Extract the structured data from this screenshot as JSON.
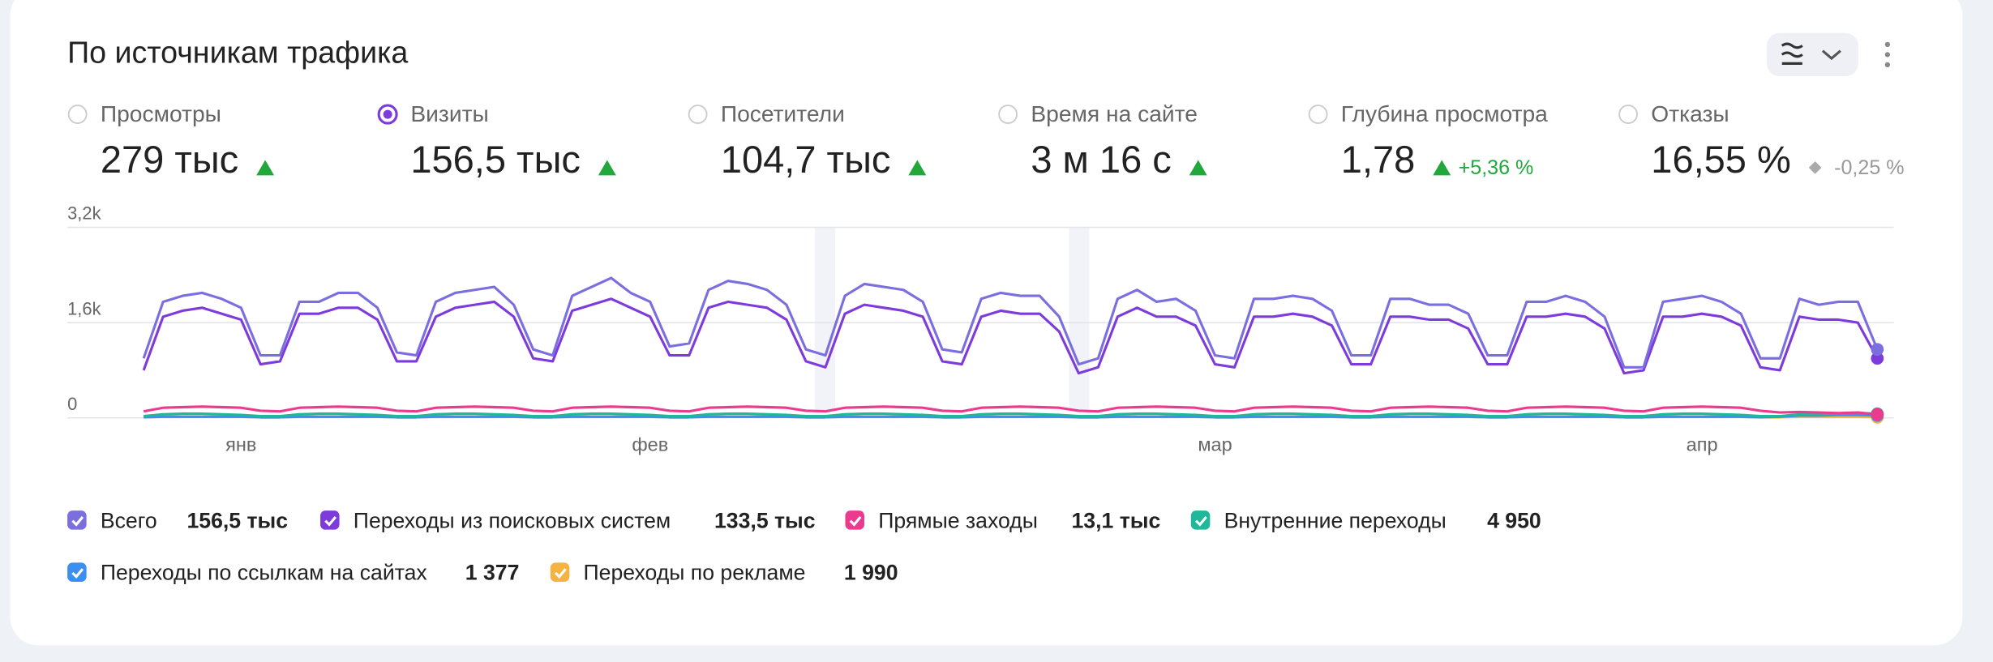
{
  "header": {
    "title": "По источникам трафика"
  },
  "metrics": [
    {
      "label": "Просмотры",
      "value": "279 тыс",
      "trend": "up"
    },
    {
      "label": "Визиты",
      "value": "156,5 тыс",
      "trend": "up",
      "selected": true
    },
    {
      "label": "Посетители",
      "value": "104,7 тыс",
      "trend": "up"
    },
    {
      "label": "Время на сайте",
      "value": "3 м 16 с",
      "trend": "up"
    },
    {
      "label": "Глубина просмотра",
      "value": "1,78",
      "trend": "up",
      "change": "+5,36 %"
    },
    {
      "label": "Отказы",
      "value": "16,55 %",
      "trend": "flat",
      "change": "-0,25 %"
    }
  ],
  "chart_data": {
    "type": "line",
    "categories": [
      null,
      null,
      null,
      null,
      null,
      "янв",
      null,
      null,
      null,
      null,
      null,
      null,
      null,
      null,
      null,
      null,
      null,
      null,
      null,
      null,
      null,
      null,
      null,
      null,
      null,
      null,
      "фев",
      null,
      null,
      null,
      null,
      null,
      null,
      null,
      null,
      null,
      null,
      null,
      null,
      null,
      null,
      null,
      null,
      null,
      null,
      null,
      null,
      null,
      null,
      null,
      null,
      null,
      null,
      null,
      null,
      "мар",
      null,
      null,
      null,
      null,
      null,
      null,
      null,
      null,
      null,
      null,
      null,
      null,
      null,
      null,
      null,
      null,
      null,
      null,
      null,
      null,
      null,
      null,
      null,
      null,
      "апр",
      null,
      null,
      null,
      null,
      null,
      null,
      null,
      null,
      null
    ],
    "ylim": [
      0,
      3200
    ],
    "yticks": [
      0,
      {
        "value": 1600,
        "label": "1,6k"
      },
      {
        "value": 3200,
        "label": "3,2k"
      }
    ],
    "grid": true,
    "series": [
      {
        "name": "Всего",
        "total": "156,5 тыс",
        "color": "#7b6fe0",
        "values": [
          1000,
          1950,
          2050,
          2100,
          2000,
          1850,
          1050,
          1050,
          1950,
          1950,
          2100,
          2100,
          1850,
          1100,
          1050,
          1950,
          2100,
          2150,
          2200,
          1900,
          1150,
          1050,
          2050,
          2200,
          2350,
          2100,
          1950,
          1200,
          1250,
          2150,
          2300,
          2250,
          2150,
          1900,
          1150,
          1050,
          2050,
          2250,
          2200,
          2150,
          1950,
          1150,
          1100,
          2000,
          2100,
          2050,
          2050,
          1700,
          900,
          1000,
          2000,
          2150,
          1950,
          2000,
          1800,
          1050,
          1000,
          2000,
          2000,
          2050,
          2000,
          1800,
          1050,
          1050,
          2000,
          2000,
          1900,
          1900,
          1750,
          1050,
          1050,
          1950,
          1950,
          2050,
          1950,
          1700,
          850,
          850,
          1950,
          2000,
          2050,
          1950,
          1750,
          1000,
          1000,
          2000,
          1900,
          1950,
          1950,
          1150
        ]
      },
      {
        "name": "Переходы из поисковых систем",
        "total": "133,5 тыс",
        "color": "#7e3bdc",
        "values": [
          800,
          1700,
          1800,
          1850,
          1750,
          1650,
          900,
          950,
          1750,
          1750,
          1850,
          1850,
          1650,
          950,
          950,
          1700,
          1850,
          1900,
          1950,
          1700,
          1000,
          950,
          1800,
          1900,
          2000,
          1850,
          1700,
          1050,
          1050,
          1850,
          1950,
          1900,
          1850,
          1650,
          950,
          850,
          1750,
          1900,
          1850,
          1800,
          1700,
          950,
          900,
          1700,
          1800,
          1750,
          1750,
          1450,
          750,
          850,
          1700,
          1850,
          1700,
          1700,
          1550,
          900,
          850,
          1700,
          1700,
          1750,
          1700,
          1550,
          900,
          900,
          1700,
          1700,
          1650,
          1650,
          1500,
          900,
          900,
          1700,
          1700,
          1750,
          1700,
          1500,
          750,
          800,
          1700,
          1700,
          1750,
          1700,
          1550,
          850,
          800,
          1700,
          1650,
          1650,
          1600,
          1000
        ]
      },
      {
        "name": "Прямые заходы",
        "total": "13,1 тыс",
        "color": "#ec3b8f",
        "values": [
          110,
          170,
          180,
          190,
          180,
          170,
          120,
          110,
          170,
          180,
          190,
          180,
          170,
          120,
          110,
          170,
          180,
          190,
          180,
          170,
          120,
          110,
          170,
          180,
          190,
          180,
          170,
          120,
          110,
          170,
          180,
          190,
          180,
          170,
          120,
          110,
          170,
          180,
          190,
          180,
          170,
          120,
          110,
          170,
          180,
          190,
          180,
          170,
          120,
          110,
          170,
          180,
          190,
          180,
          170,
          120,
          110,
          170,
          180,
          190,
          180,
          170,
          120,
          110,
          170,
          180,
          190,
          180,
          170,
          120,
          110,
          170,
          180,
          190,
          180,
          170,
          120,
          110,
          170,
          180,
          190,
          180,
          170,
          120,
          90,
          100,
          90,
          80,
          90,
          60
        ]
      },
      {
        "name": "Внутренние переходы",
        "total": "4 950",
        "color": "#1fb89a",
        "values": [
          30,
          60,
          70,
          70,
          60,
          50,
          30,
          30,
          60,
          70,
          70,
          60,
          50,
          30,
          30,
          60,
          70,
          70,
          60,
          50,
          30,
          30,
          60,
          70,
          70,
          60,
          50,
          30,
          30,
          60,
          70,
          70,
          60,
          50,
          30,
          30,
          60,
          70,
          70,
          60,
          50,
          30,
          30,
          60,
          70,
          70,
          60,
          50,
          30,
          30,
          60,
          70,
          70,
          60,
          50,
          30,
          30,
          60,
          70,
          70,
          60,
          50,
          30,
          30,
          60,
          70,
          70,
          60,
          50,
          30,
          30,
          60,
          70,
          70,
          60,
          50,
          30,
          30,
          60,
          70,
          70,
          60,
          50,
          30,
          30,
          60,
          60,
          70,
          80,
          70
        ]
      },
      {
        "name": "Переходы по ссылкам на сайтах",
        "total": "1 377",
        "color": "#3c8ef0",
        "values": [
          10,
          20,
          20,
          20,
          20,
          20,
          10,
          10,
          20,
          20,
          20,
          20,
          20,
          10,
          10,
          20,
          20,
          20,
          20,
          20,
          10,
          10,
          20,
          20,
          20,
          20,
          20,
          10,
          10,
          20,
          20,
          20,
          20,
          20,
          10,
          10,
          20,
          20,
          20,
          20,
          20,
          10,
          10,
          20,
          20,
          20,
          20,
          20,
          10,
          10,
          20,
          20,
          20,
          20,
          20,
          10,
          10,
          20,
          20,
          20,
          20,
          20,
          10,
          10,
          20,
          20,
          20,
          20,
          20,
          10,
          10,
          20,
          20,
          20,
          20,
          20,
          10,
          10,
          20,
          20,
          20,
          20,
          20,
          10,
          20,
          40,
          40,
          50,
          50,
          40
        ]
      },
      {
        "name": "Переходы по рекламе",
        "total": "1 990",
        "color": "#f5b342",
        "values": [
          10,
          20,
          20,
          20,
          20,
          20,
          10,
          10,
          20,
          20,
          20,
          20,
          20,
          10,
          10,
          20,
          20,
          20,
          20,
          20,
          10,
          10,
          20,
          20,
          20,
          20,
          20,
          10,
          10,
          20,
          20,
          20,
          20,
          20,
          10,
          10,
          20,
          20,
          20,
          20,
          20,
          10,
          10,
          20,
          20,
          20,
          20,
          20,
          10,
          10,
          20,
          20,
          20,
          20,
          20,
          10,
          10,
          20,
          20,
          20,
          20,
          20,
          10,
          10,
          20,
          20,
          20,
          20,
          20,
          10,
          10,
          20,
          20,
          20,
          20,
          20,
          10,
          10,
          20,
          20,
          20,
          20,
          20,
          10,
          10,
          20,
          20,
          20,
          20,
          10
        ]
      }
    ]
  }
}
